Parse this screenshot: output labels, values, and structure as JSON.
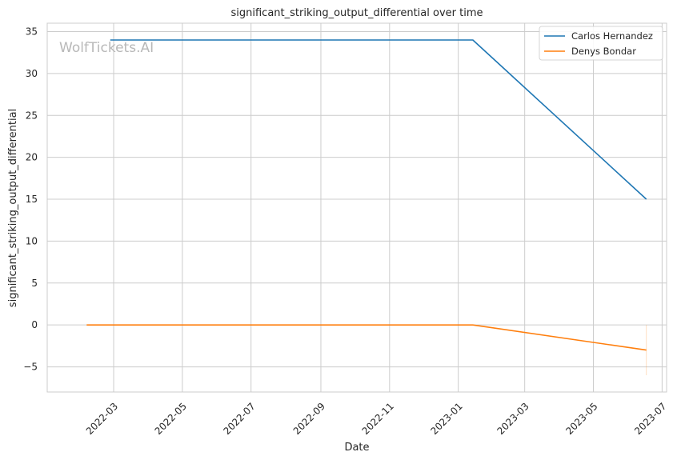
{
  "chart_data": {
    "type": "line",
    "title": "significant_striking_output_differential over time",
    "xlabel": "Date",
    "ylabel": "significant_striking_output_differential",
    "watermark": "WolfTickets.AI",
    "x_axis": {
      "type": "date",
      "range": [
        "2022-01-01",
        "2023-07-05"
      ],
      "ticks": [
        "2022-03",
        "2022-05",
        "2022-07",
        "2022-09",
        "2022-11",
        "2023-01",
        "2023-03",
        "2023-05",
        "2023-07"
      ]
    },
    "y_axis": {
      "range": [
        -8,
        36
      ],
      "ticks": [
        -5,
        0,
        5,
        10,
        15,
        20,
        25,
        30,
        35
      ],
      "tick_labels": [
        "−5",
        "0",
        "5",
        "10",
        "15",
        "20",
        "25",
        "30",
        "35"
      ]
    },
    "grid": true,
    "legend": {
      "position": "top-right"
    },
    "series": [
      {
        "name": "Carlos Hernandez",
        "color": "#1f77b4",
        "points": [
          {
            "x": "2022-02-26",
            "y": 34
          },
          {
            "x": "2023-01-14",
            "y": 34
          },
          {
            "x": "2023-06-17",
            "y": 15
          }
        ]
      },
      {
        "name": "Denys Bondar",
        "color": "#ff7f0e",
        "points": [
          {
            "x": "2022-02-05",
            "y": 0
          },
          {
            "x": "2023-01-14",
            "y": 0
          },
          {
            "x": "2023-06-17",
            "y": -3
          }
        ],
        "band": {
          "x": "2023-06-17",
          "low": -6,
          "high": 0
        }
      }
    ]
  }
}
